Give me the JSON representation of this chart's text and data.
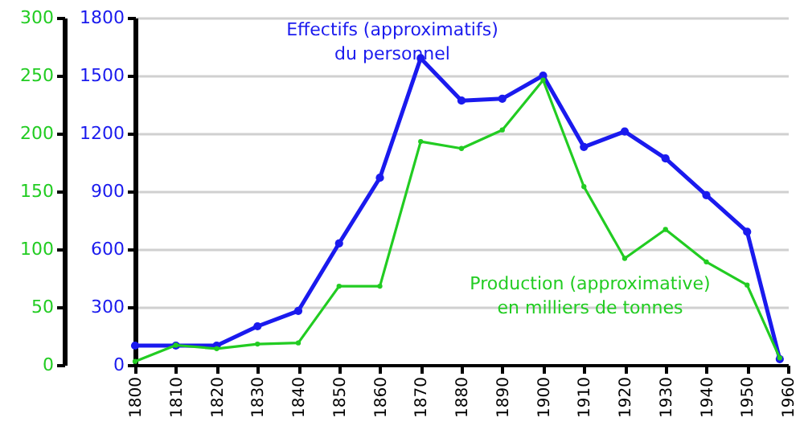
{
  "chart_data": {
    "type": "line",
    "x": [
      1800,
      1810,
      1820,
      1830,
      1840,
      1850,
      1860,
      1870,
      1880,
      1890,
      1900,
      1910,
      1920,
      1930,
      1940,
      1950,
      1958
    ],
    "xlim": [
      1800,
      1960
    ],
    "xticks": [
      1800,
      1810,
      1820,
      1830,
      1840,
      1850,
      1860,
      1870,
      1880,
      1890,
      1900,
      1910,
      1920,
      1930,
      1940,
      1950,
      1960
    ],
    "ylim": [
      0,
      300
    ],
    "yticks": [
      0,
      50,
      100,
      150,
      200,
      250,
      300
    ],
    "y2lim": [
      0,
      1800
    ],
    "y2ticks": [
      0,
      300,
      600,
      900,
      1200,
      1500,
      1800
    ],
    "grid": "y",
    "marker": "circle",
    "series": [
      {
        "name": "Effectifs (approximatifs)\ndu personnel",
        "color": "#1a1aee",
        "axis": "y2",
        "values": [
          100,
          100,
          100,
          200,
          280,
          630,
          970,
          1590,
          1370,
          1380,
          1500,
          1130,
          1210,
          1070,
          880,
          690,
          30
        ]
      },
      {
        "name": "Production (approximative)\nen milliers de tonnes",
        "color": "#22cc22",
        "axis": "y",
        "values": [
          3,
          17,
          14,
          18,
          19,
          68,
          68,
          193,
          187,
          203,
          246,
          154,
          92,
          117,
          89,
          69,
          6
        ]
      }
    ]
  }
}
